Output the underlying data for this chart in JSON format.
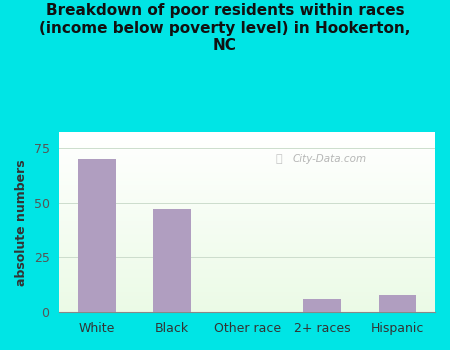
{
  "title": "Breakdown of poor residents within races\n(income below poverty level) in Hookerton,\nNC",
  "categories": [
    "White",
    "Black",
    "Other race",
    "2+ races",
    "Hispanic"
  ],
  "values": [
    70,
    47,
    0,
    6,
    8
  ],
  "bar_color": "#b09ec0",
  "ylabel": "absolute numbers",
  "ylim": [
    0,
    82
  ],
  "yticks": [
    0,
    25,
    50,
    75
  ],
  "bg_outer": "#00e5e5",
  "title_color": "#111111",
  "watermark": "City-Data.com",
  "title_fontsize": 11.0,
  "ylabel_fontsize": 9,
  "tick_fontsize": 9,
  "bar_width": 0.5
}
